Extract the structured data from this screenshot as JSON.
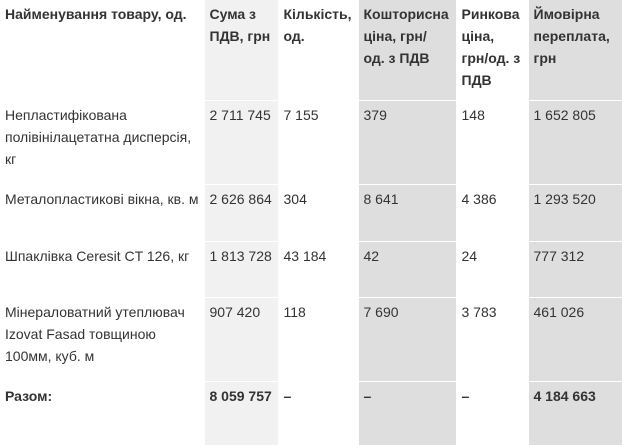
{
  "table": {
    "headers": [
      "Найменування товару, од.",
      "Сума з ПДВ, грн",
      "Кількість, од.",
      "Кошторисна ціна, грн/ од. з ПДВ",
      "Ринкова ціна, грн/од. з ПДВ",
      "Ймовірна переплата, грн"
    ],
    "rows": [
      [
        "Непластифікована полівінілацетатна дисперсія, кг",
        "2 711 745",
        "7 155",
        "379",
        "148",
        "1 652 805"
      ],
      [
        "Металопластикові вікна, кв. м",
        "2 626 864",
        "304",
        "8 641",
        "4 386",
        "1 293 520"
      ],
      [
        "Шпаклівка Ceresit CT 126, кг",
        "1 813 728",
        "43 184",
        "42",
        "24",
        "777 312"
      ],
      [
        "Мінераловатний утеплювач Izovat Fasad товщиною 100мм, куб. м",
        "907 420",
        "118",
        "7 690",
        "3 783",
        "461 026"
      ]
    ],
    "total": [
      "Разом:",
      "8 059 757",
      "–",
      "–",
      "–",
      "4 184 663"
    ]
  }
}
